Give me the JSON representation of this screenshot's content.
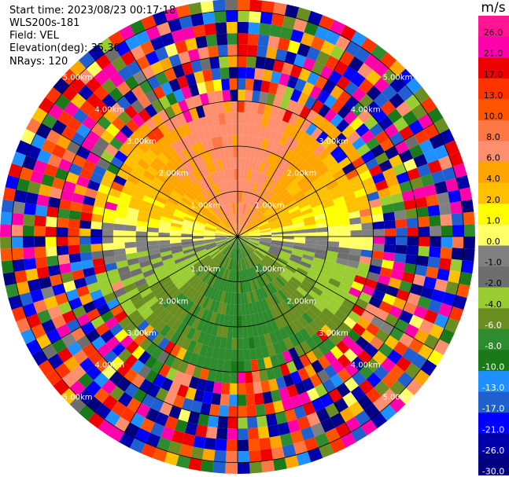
{
  "header": {
    "start_time": "Start time: 2023/08/23 00:17:18",
    "instrument": "WLS200s-181",
    "field": "Field: VEL",
    "elevation": "Elevation(deg): 35.30",
    "nrays": "NRays: 120"
  },
  "colorbar": {
    "unit": "m/s",
    "ticks": [
      "26.0",
      "21.0",
      "17.0",
      "13.0",
      "10.0",
      "8.0",
      "6.0",
      "4.0",
      "2.0",
      "1.0",
      "0.0",
      "-1.0",
      "-2.0",
      "-4.0",
      "-6.0",
      "-8.0",
      "-10.0",
      "-13.0",
      "-17.0",
      "-21.0",
      "-26.0",
      "-30.0"
    ],
    "colors": [
      "#ff1493",
      "#ff00aa",
      "#ee0000",
      "#ff3300",
      "#ff5500",
      "#ff7744",
      "#ff8f6f",
      "#ffa500",
      "#ffc000",
      "#ffff00",
      "#ffff66",
      "#808080",
      "#6e6e6e",
      "#9acd32",
      "#6b8e23",
      "#2e8b2e",
      "#1a7a1a",
      "#1e90ff",
      "#1f5fd0",
      "#0000ff",
      "#0000aa",
      "#000080"
    ]
  },
  "chart_data": {
    "type": "heatmap",
    "title": "",
    "range_rings": [
      "1.00km",
      "2.00km",
      "3.00km",
      "4.00km",
      "5.00km"
    ],
    "variable": "VEL",
    "units": "m/s",
    "vmin": -30.0,
    "vmax": 30.0,
    "n_rays": 120,
    "n_gates": 21,
    "gate_km": 0.25,
    "pattern": "Near field (up to ~3 km): positive velocities (yellow/orange, 2-8 m/s) in northern half, near-zero (gray) along east-west axis, negative velocities (green, -2 to -8 m/s) in southern half. Beyond ~3 km: noisy multicolor speckle across full range of -30 to 26 m/s."
  }
}
